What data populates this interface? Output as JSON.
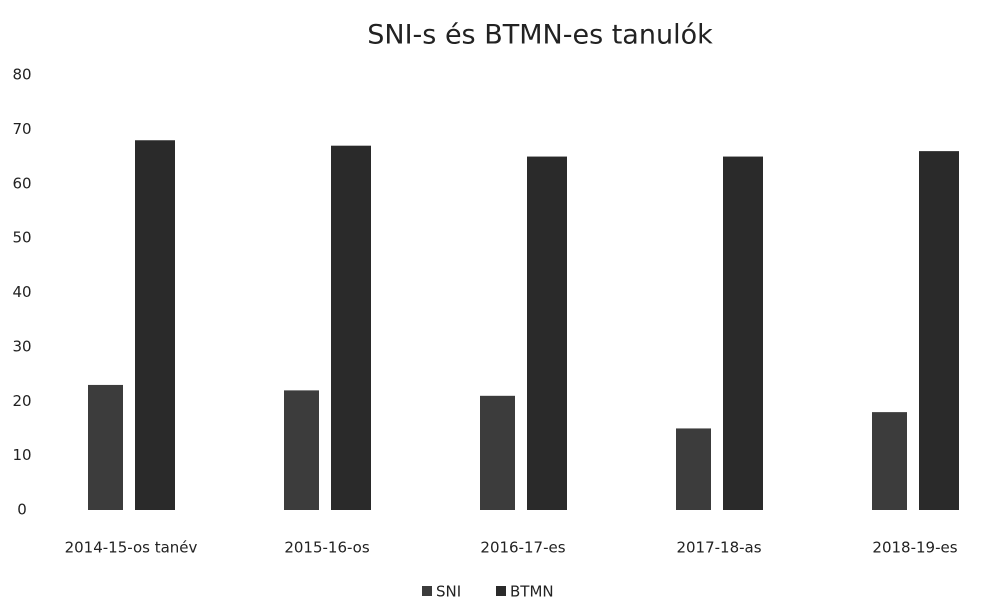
{
  "chart_data": {
    "type": "bar",
    "title": "SNI-s és BTMN-es tanulók",
    "categories": [
      "2014-15-os tanév",
      "2015-16-os",
      "2016-17-es",
      "2017-18-as",
      "2018-19-es"
    ],
    "series": [
      {
        "name": "SNI",
        "color": "#3c3c3c",
        "values": [
          23,
          22,
          21,
          15,
          18
        ]
      },
      {
        "name": "BTMN",
        "color": "#2a2a2a",
        "values": [
          68,
          67,
          65,
          65,
          66
        ]
      }
    ],
    "ylim": [
      0,
      80
    ],
    "yticks": [
      0,
      10,
      20,
      30,
      40,
      50,
      60,
      70,
      80
    ],
    "grid": false,
    "legend": "bottom"
  }
}
